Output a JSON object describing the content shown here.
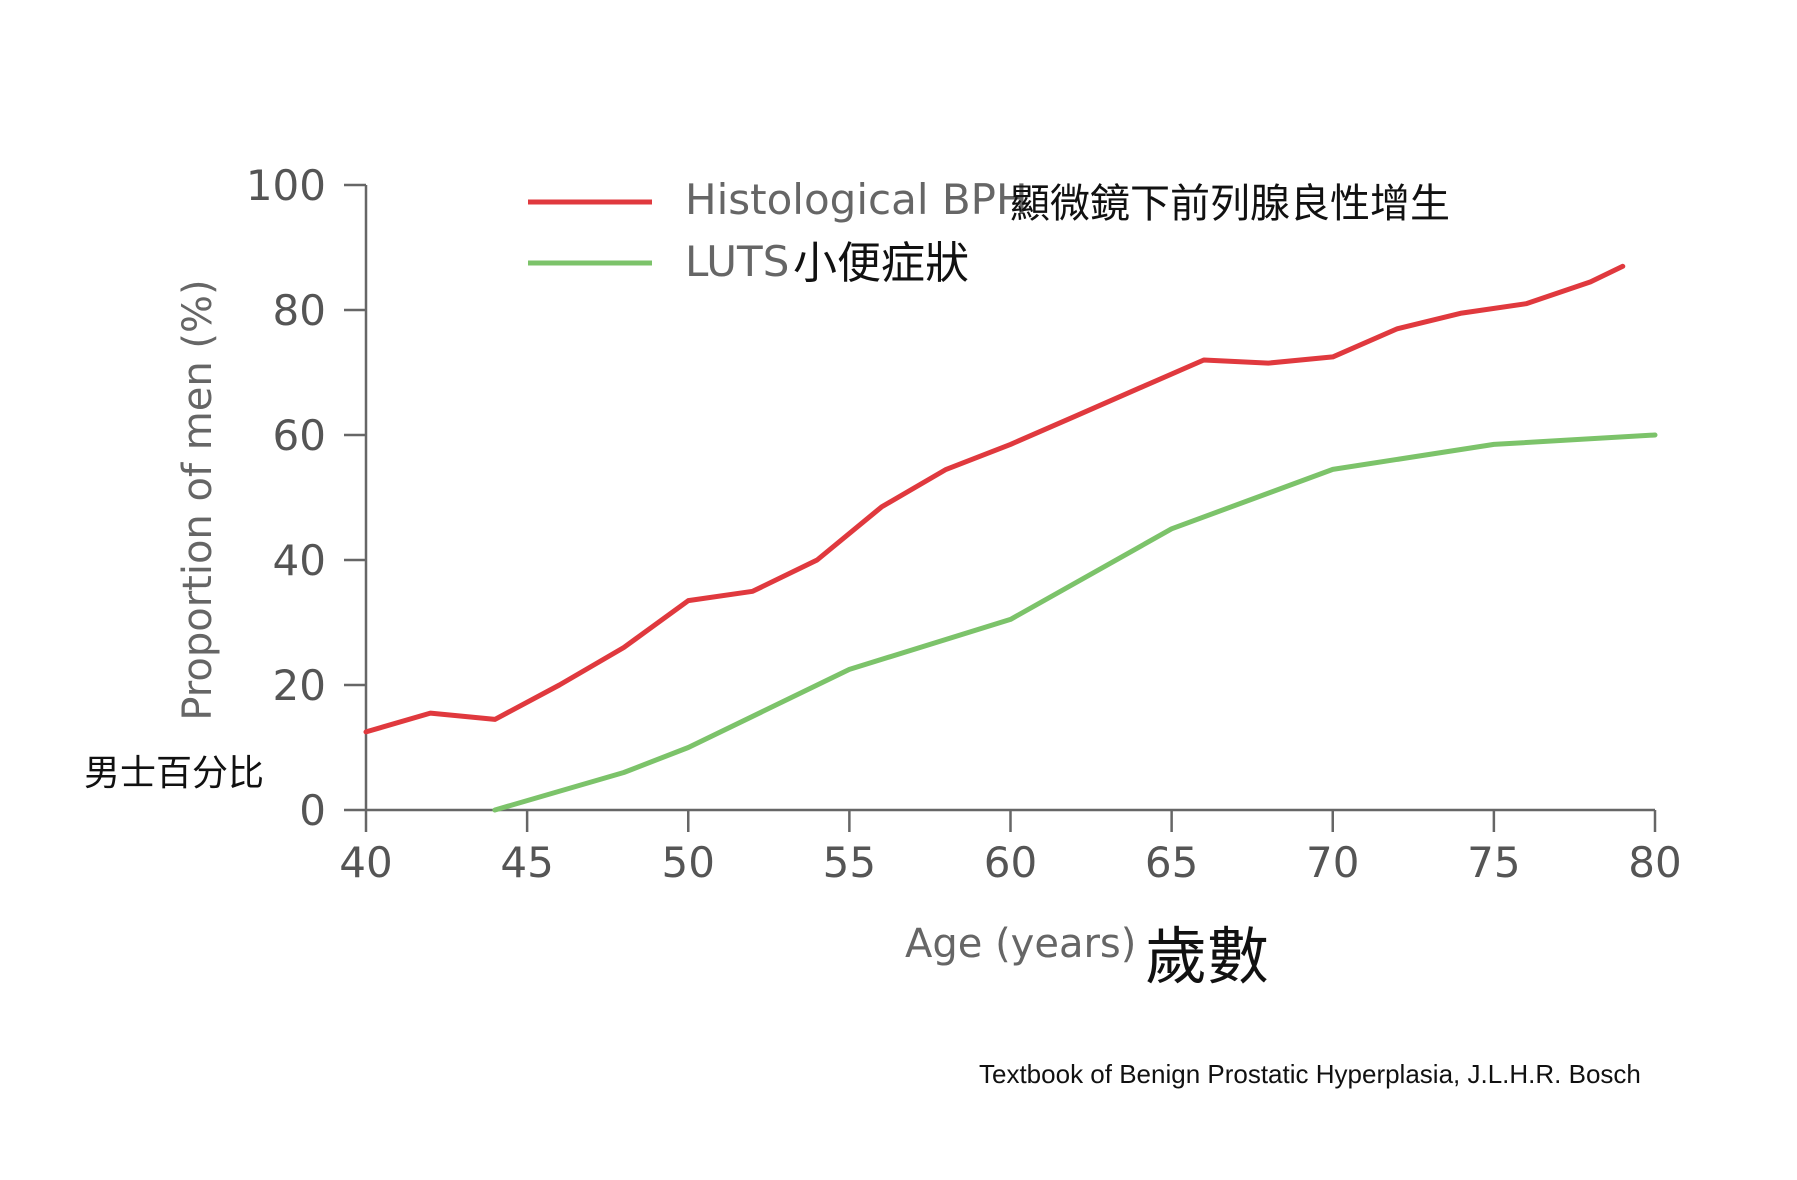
{
  "chart_data": {
    "type": "line",
    "xlabel": "Age (years)",
    "xlabel_zh": "歲數",
    "ylabel": "Proportion of men (%)",
    "ylabel_zh": "男士百分比",
    "xlim": [
      40,
      80
    ],
    "ylim": [
      0,
      100
    ],
    "x_ticks": [
      40,
      45,
      50,
      55,
      60,
      65,
      70,
      75,
      80
    ],
    "y_ticks": [
      0,
      20,
      40,
      60,
      80,
      100
    ],
    "grid": false,
    "legend_position": "top-left",
    "series": [
      {
        "name": "Histological BPH",
        "name_zh": "顯微鏡下前列腺良性增生",
        "color": "#e0393e",
        "x": [
          40,
          42,
          44,
          46,
          48,
          50,
          52,
          54,
          56,
          58,
          60,
          62,
          64,
          66,
          68,
          70,
          72,
          74,
          76,
          78,
          79
        ],
        "y": [
          12.5,
          15.5,
          14.5,
          20,
          26,
          33.5,
          35,
          40,
          48.5,
          54.5,
          58.5,
          63,
          67.5,
          72,
          71.5,
          72.5,
          77,
          79.5,
          81,
          84.5,
          87
        ]
      },
      {
        "name": "LUTS",
        "name_zh": "小便症狀",
        "color": "#7cc36a",
        "x": [
          44,
          48,
          50,
          55,
          60,
          65,
          70,
          75,
          80
        ],
        "y": [
          0,
          6,
          10,
          22.5,
          30.5,
          45,
          54.5,
          58.5,
          60
        ]
      }
    ]
  },
  "source": "Textbook of Benign Prostatic Hyperplasia, J.L.H.R. Bosch"
}
